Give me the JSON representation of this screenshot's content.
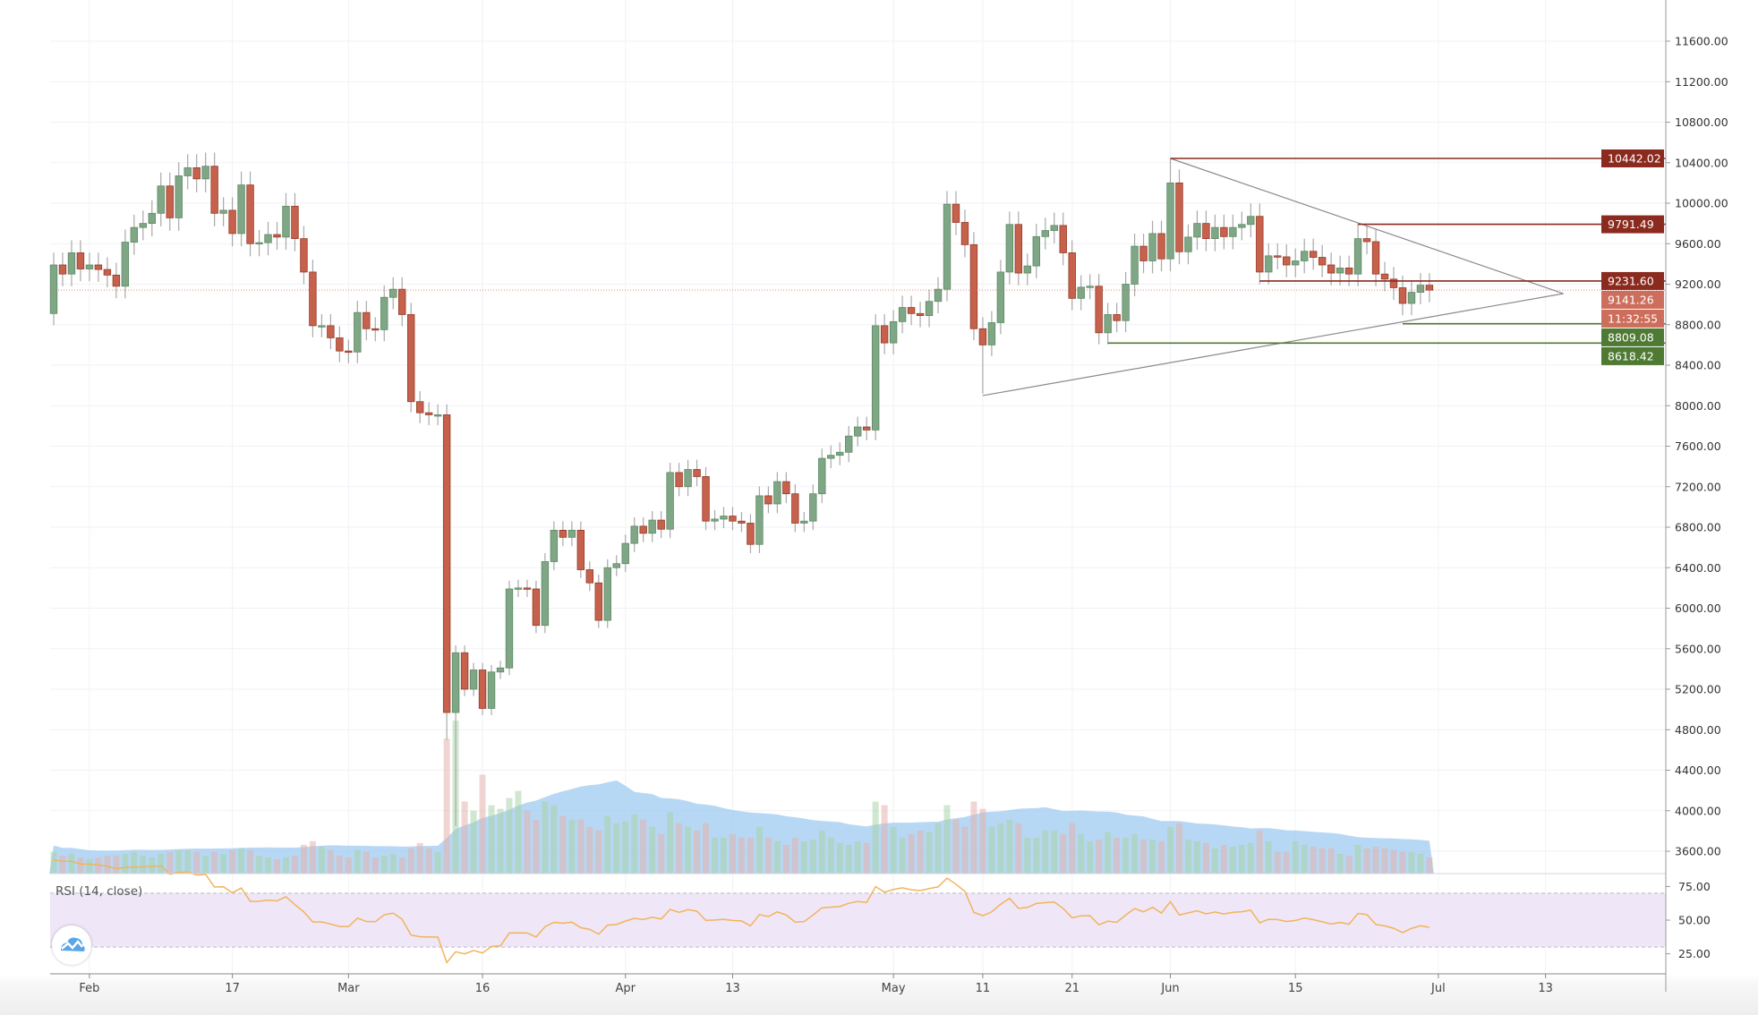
{
  "chart_data": {
    "type": "candlestick",
    "instrument_hint": "BTC daily",
    "start_date": "2020-01-28",
    "first_open": 8910,
    "closes": [
      9390,
      9300,
      9510,
      9350,
      9390,
      9345,
      9290,
      9180,
      9615,
      9760,
      9800,
      9900,
      10170,
      9855,
      10270,
      10350,
      10240,
      10365,
      9900,
      9930,
      9700,
      10180,
      9600,
      9610,
      9690,
      9665,
      9970,
      9650,
      9320,
      8790,
      8790,
      8670,
      8540,
      8530,
      8920,
      8760,
      8750,
      9070,
      9150,
      8900,
      8040,
      7930,
      7910,
      7910,
      4970,
      5560,
      5200,
      5390,
      5010,
      5370,
      5410,
      6190,
      6200,
      6190,
      5830,
      6460,
      6770,
      6700,
      6770,
      6380,
      6250,
      5880,
      6400,
      6440,
      6640,
      6810,
      6740,
      6870,
      6780,
      7340,
      7200,
      7370,
      7300,
      6860,
      6880,
      6910,
      6860,
      6840,
      6630,
      7110,
      7030,
      7250,
      7130,
      6840,
      6860,
      7130,
      7480,
      7510,
      7540,
      7700,
      7790,
      7760,
      8790,
      8620,
      8830,
      8970,
      8910,
      8890,
      9030,
      9150,
      9990,
      9810,
      9590,
      8760,
      8600,
      8820,
      9320,
      9790,
      9310,
      9380,
      9670,
      9730,
      9780,
      9510,
      9060,
      9170,
      9180,
      8720,
      8900,
      8840,
      9200,
      9575,
      9430,
      9700,
      9450,
      10200,
      9520,
      9665,
      9800,
      9650,
      9760,
      9670,
      9760,
      9790,
      9870,
      9320,
      9480,
      9470,
      9390,
      9430,
      9525,
      9465,
      9390,
      9310,
      9360,
      9300,
      9650,
      9620,
      9300,
      9250,
      9165,
      9010,
      9120,
      9190,
      9141.26
    ],
    "notable_lows": {
      "2020-03-12": 4700,
      "2020-03-13": 3850,
      "2020-05-11": 8117
    },
    "notable_highs": {
      "2020-06-01": 10442.02,
      "2020-06-22": 9791.49
    },
    "volume_relative": [
      1.2,
      1.0,
      1.1,
      0.9,
      0.8,
      0.9,
      1.0,
      1.0,
      1.1,
      1.2,
      1.0,
      0.9,
      1.1,
      1.2,
      1.3,
      1.3,
      1.2,
      1.0,
      1.2,
      1.1,
      1.3,
      1.4,
      1.3,
      1.0,
      0.9,
      0.8,
      0.9,
      1.0,
      1.6,
      1.8,
      1.5,
      1.3,
      1.0,
      0.9,
      1.3,
      1.2,
      0.9,
      1.0,
      1.1,
      0.9,
      1.4,
      1.7,
      1.4,
      1.2,
      7.5,
      8.5,
      4.0,
      3.5,
      5.5,
      3.8,
      3.6,
      4.2,
      4.6,
      3.5,
      3.0,
      4.0,
      3.8,
      3.2,
      3.0,
      3.0,
      2.6,
      2.4,
      3.2,
      2.8,
      2.9,
      3.3,
      3.0,
      2.6,
      2.2,
      3.4,
      2.8,
      2.6,
      2.4,
      2.8,
      2.0,
      2.0,
      2.2,
      2.0,
      2.0,
      2.6,
      2.0,
      1.8,
      1.6,
      2.0,
      1.8,
      1.9,
      2.4,
      2.0,
      1.7,
      1.6,
      1.8,
      1.7,
      4.0,
      3.8,
      2.6,
      2.0,
      2.2,
      2.4,
      2.3,
      2.8,
      3.8,
      3.0,
      2.6,
      4.0,
      3.6,
      2.6,
      2.8,
      3.0,
      2.8,
      2.0,
      2.0,
      2.4,
      2.4,
      2.2,
      2.8,
      2.2,
      1.8,
      1.9,
      2.3,
      2.0,
      2.0,
      2.2,
      1.9,
      1.9,
      1.8,
      2.6,
      2.8,
      1.9,
      1.8,
      1.7,
      1.4,
      1.6,
      1.5,
      1.6,
      1.7,
      2.4,
      1.8,
      1.2,
      1.2,
      1.8,
      1.6,
      1.5,
      1.4,
      1.4,
      1.1,
      1.0,
      1.6,
      1.4,
      1.5,
      1.4,
      1.3,
      1.2,
      1.2,
      1.1,
      0.9
    ],
    "volume_ma_period": 20,
    "price_axis": {
      "min": 3600,
      "max": 11600,
      "step": 400,
      "ticks": [
        "11600.00",
        "11200.00",
        "10800.00",
        "10400.00",
        "10000.00",
        "9600.00",
        "9200.00",
        "8800.00",
        "8400.00",
        "8000.00",
        "7600.00",
        "7200.00",
        "6800.00",
        "6400.00",
        "6000.00",
        "5600.00",
        "5200.00",
        "4800.00",
        "4400.00",
        "4000.00",
        "3600.00"
      ]
    },
    "time_axis": [
      {
        "label": "Feb",
        "date": "2020-02-01"
      },
      {
        "label": "17",
        "date": "2020-02-17"
      },
      {
        "label": "Mar",
        "date": "2020-03-01"
      },
      {
        "label": "16",
        "date": "2020-03-16"
      },
      {
        "label": "Apr",
        "date": "2020-04-01"
      },
      {
        "label": "13",
        "date": "2020-04-13"
      },
      {
        "label": "May",
        "date": "2020-05-01"
      },
      {
        "label": "11",
        "date": "2020-05-11"
      },
      {
        "label": "21",
        "date": "2020-05-21"
      },
      {
        "label": "Jun",
        "date": "2020-06-01"
      },
      {
        "label": "15",
        "date": "2020-06-15"
      },
      {
        "label": "Jul",
        "date": "2020-07-01"
      },
      {
        "label": "13",
        "date": "2020-07-13"
      }
    ],
    "horizontal_levels": [
      {
        "price": 10442.02,
        "label": "10442.02",
        "from": "2020-06-01",
        "color": "#8b2a1e"
      },
      {
        "price": 9791.49,
        "label": "9791.49",
        "from": "2020-06-22",
        "color": "#8b2a1e"
      },
      {
        "price": 9231.6,
        "label": "9231.60",
        "from": "2020-06-11",
        "color": "#8b2a1e"
      },
      {
        "price": 8809.08,
        "label": "8809.08",
        "from": "2020-06-27",
        "color": "#4f7a33"
      },
      {
        "price": 8618.42,
        "label": "8618.42",
        "from": "2020-05-25",
        "color": "#4f7a33"
      }
    ],
    "last_price": {
      "price": 9141.26,
      "label": "9141.26",
      "countdown": "11:32:55",
      "color": "#cd6e5c"
    },
    "triangle": [
      {
        "from": {
          "date": "2020-06-01",
          "price": 10442
        },
        "to": {
          "date": "2020-07-15",
          "price": 9107
        }
      },
      {
        "from": {
          "date": "2020-05-11",
          "price": 8100
        },
        "to": {
          "date": "2020-07-15",
          "price": 9107
        }
      }
    ],
    "rsi": {
      "title": "RSI (14, close)",
      "period": 14,
      "upper": 70,
      "lower": 30,
      "ticks": [
        "75.00",
        "50.00",
        "25.00"
      ],
      "color": "#f2b45a"
    },
    "colors": {
      "up": "#7fa786",
      "up_border": "#5c8a64",
      "down": "#c6624c",
      "down_border": "#96392a",
      "volume_ma": "#9fcbf0"
    }
  }
}
